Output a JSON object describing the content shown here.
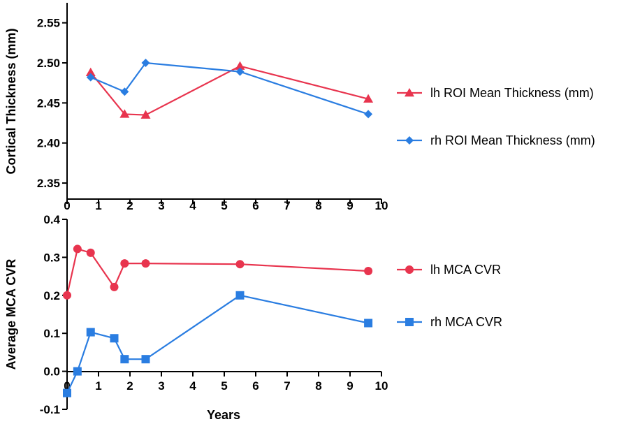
{
  "chart_data": [
    {
      "type": "line",
      "title": "",
      "xlabel": "",
      "ylabel": "Cortical Thickness (mm)",
      "xlim": [
        0,
        10
      ],
      "ylim": [
        2.33,
        2.575
      ],
      "xticks": [
        "0",
        "1",
        "2",
        "3",
        "4",
        "5",
        "6",
        "7",
        "8",
        "9",
        "10"
      ],
      "yticks": [
        "2.35",
        "2.40",
        "2.45",
        "2.50",
        "2.55"
      ],
      "ytick_values": [
        2.35,
        2.4,
        2.45,
        2.5,
        2.55
      ],
      "legend_position": "right",
      "series": [
        {
          "name": "lh ROI Mean Thickness (mm)",
          "color": "#e8344e",
          "marker": "triangle",
          "x": [
            0.75,
            1.83,
            2.5,
            5.5,
            9.58
          ],
          "y": [
            2.488,
            2.436,
            2.435,
            2.496,
            2.455
          ]
        },
        {
          "name": "rh ROI Mean Thickness (mm)",
          "color": "#2a7de1",
          "marker": "diamond",
          "x": [
            0.75,
            1.83,
            2.5,
            5.5,
            9.58
          ],
          "y": [
            2.482,
            2.464,
            2.5,
            2.489,
            2.436
          ]
        }
      ]
    },
    {
      "type": "line",
      "title": "",
      "xlabel": "Years",
      "ylabel": "Average MCA CVR",
      "xlim": [
        0,
        10
      ],
      "ylim": [
        -0.1,
        0.4
      ],
      "xticks": [
        "0",
        "1",
        "2",
        "3",
        "4",
        "5",
        "6",
        "7",
        "8",
        "9",
        "10"
      ],
      "yticks": [
        "-0.1",
        "0.0",
        "0.1",
        "0.2",
        "0.3",
        "0.4"
      ],
      "ytick_values": [
        -0.1,
        0.0,
        0.1,
        0.2,
        0.3,
        0.4
      ],
      "legend_position": "right",
      "series": [
        {
          "name": "lh MCA CVR",
          "color": "#e8344e",
          "marker": "circle",
          "x": [
            0,
            0.33,
            0.75,
            1.5,
            1.83,
            2.5,
            5.5,
            9.58
          ],
          "y": [
            0.2,
            0.322,
            0.312,
            0.222,
            0.284,
            0.284,
            0.282,
            0.264
          ]
        },
        {
          "name": "rh MCA CVR",
          "color": "#2a7de1",
          "marker": "square",
          "x": [
            0,
            0.33,
            0.75,
            1.5,
            1.83,
            2.5,
            5.5,
            9.58
          ],
          "y": [
            -0.057,
            0.0,
            0.103,
            0.087,
            0.032,
            0.032,
            0.2,
            0.127
          ]
        }
      ]
    }
  ]
}
